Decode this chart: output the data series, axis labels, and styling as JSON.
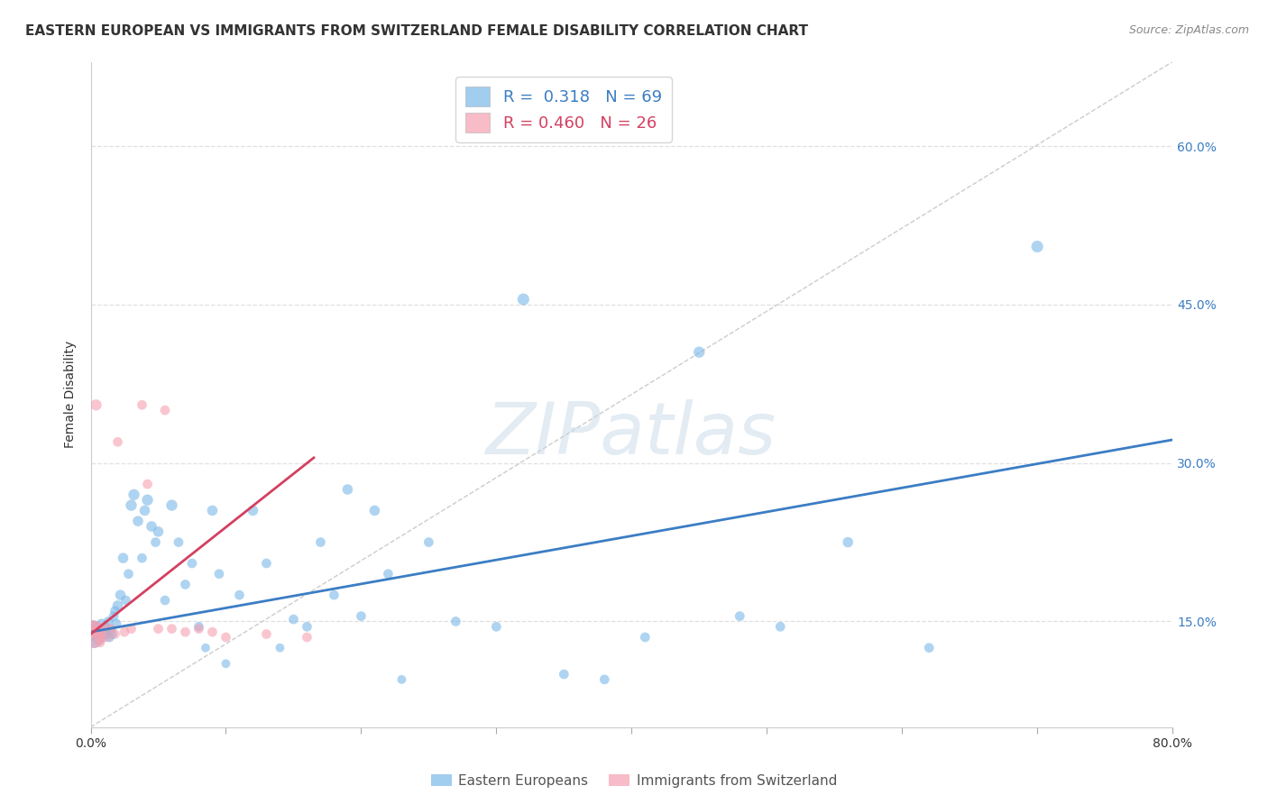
{
  "title": "EASTERN EUROPEAN VS IMMIGRANTS FROM SWITZERLAND FEMALE DISABILITY CORRELATION CHART",
  "source": "Source: ZipAtlas.com",
  "ylabel": "Female Disability",
  "xlim": [
    0.0,
    0.8
  ],
  "ylim": [
    0.05,
    0.68
  ],
  "yticks": [
    0.15,
    0.3,
    0.45,
    0.6
  ],
  "ytick_labels": [
    "15.0%",
    "30.0%",
    "45.0%",
    "60.0%"
  ],
  "xticks": [
    0.0,
    0.1,
    0.2,
    0.3,
    0.4,
    0.5,
    0.6,
    0.7,
    0.8
  ],
  "xtick_labels": [
    "0.0%",
    "",
    "",
    "",
    "",
    "",
    "",
    "",
    "80.0%"
  ],
  "blue_R": "0.318",
  "blue_N": "69",
  "pink_R": "0.460",
  "pink_N": "26",
  "blue_color": "#7ab8e8",
  "pink_color": "#f5a0b0",
  "blue_line_color": "#3b7dc4",
  "pink_line_color": "#d44060",
  "blue_scatter_x": [
    0.001,
    0.002,
    0.003,
    0.004,
    0.005,
    0.006,
    0.007,
    0.008,
    0.009,
    0.01,
    0.011,
    0.012,
    0.013,
    0.014,
    0.015,
    0.016,
    0.017,
    0.018,
    0.019,
    0.02,
    0.022,
    0.024,
    0.026,
    0.028,
    0.03,
    0.032,
    0.035,
    0.038,
    0.04,
    0.042,
    0.045,
    0.048,
    0.05,
    0.055,
    0.06,
    0.065,
    0.07,
    0.075,
    0.08,
    0.085,
    0.09,
    0.095,
    0.1,
    0.11,
    0.12,
    0.13,
    0.14,
    0.15,
    0.16,
    0.17,
    0.18,
    0.19,
    0.2,
    0.21,
    0.22,
    0.23,
    0.25,
    0.27,
    0.3,
    0.32,
    0.35,
    0.38,
    0.41,
    0.45,
    0.48,
    0.51,
    0.56,
    0.62,
    0.7
  ],
  "blue_scatter_y": [
    0.14,
    0.145,
    0.13,
    0.145,
    0.138,
    0.132,
    0.142,
    0.148,
    0.135,
    0.14,
    0.145,
    0.138,
    0.15,
    0.135,
    0.142,
    0.138,
    0.155,
    0.16,
    0.148,
    0.165,
    0.175,
    0.21,
    0.17,
    0.195,
    0.26,
    0.27,
    0.245,
    0.21,
    0.255,
    0.265,
    0.24,
    0.225,
    0.235,
    0.17,
    0.26,
    0.225,
    0.185,
    0.205,
    0.145,
    0.125,
    0.255,
    0.195,
    0.11,
    0.175,
    0.255,
    0.205,
    0.125,
    0.152,
    0.145,
    0.225,
    0.175,
    0.275,
    0.155,
    0.255,
    0.195,
    0.095,
    0.225,
    0.15,
    0.145,
    0.455,
    0.1,
    0.095,
    0.135,
    0.405,
    0.155,
    0.145,
    0.225,
    0.125,
    0.505
  ],
  "blue_scatter_size": [
    200,
    100,
    80,
    70,
    70,
    70,
    60,
    60,
    60,
    70,
    60,
    60,
    60,
    60,
    60,
    60,
    60,
    60,
    60,
    70,
    70,
    70,
    60,
    60,
    80,
    80,
    70,
    60,
    70,
    80,
    70,
    60,
    70,
    60,
    80,
    60,
    60,
    60,
    60,
    50,
    70,
    60,
    50,
    60,
    70,
    60,
    50,
    60,
    60,
    60,
    60,
    70,
    60,
    70,
    60,
    50,
    60,
    60,
    60,
    90,
    60,
    60,
    60,
    80,
    60,
    60,
    70,
    60,
    90
  ],
  "pink_scatter_x": [
    0.001,
    0.002,
    0.003,
    0.004,
    0.005,
    0.006,
    0.007,
    0.008,
    0.01,
    0.012,
    0.015,
    0.018,
    0.02,
    0.025,
    0.03,
    0.038,
    0.042,
    0.05,
    0.055,
    0.06,
    0.07,
    0.08,
    0.09,
    0.1,
    0.13,
    0.16
  ],
  "pink_scatter_y": [
    0.138,
    0.14,
    0.145,
    0.355,
    0.14,
    0.135,
    0.13,
    0.14,
    0.145,
    0.135,
    0.143,
    0.138,
    0.32,
    0.14,
    0.143,
    0.355,
    0.28,
    0.143,
    0.35,
    0.143,
    0.14,
    0.143,
    0.14,
    0.135,
    0.138,
    0.135
  ],
  "pink_scatter_size": [
    500,
    100,
    80,
    80,
    70,
    70,
    60,
    60,
    60,
    60,
    60,
    60,
    60,
    60,
    60,
    60,
    60,
    60,
    60,
    60,
    60,
    60,
    60,
    60,
    60,
    60
  ],
  "blue_trend_x": [
    0.0,
    0.8
  ],
  "blue_trend_y": [
    0.14,
    0.322
  ],
  "pink_trend_x": [
    0.0,
    0.165
  ],
  "pink_trend_y": [
    0.138,
    0.305
  ],
  "ref_line_x": [
    0.0,
    0.8
  ],
  "ref_line_y": [
    0.05,
    0.68
  ],
  "background_color": "#ffffff",
  "grid_color": "#e0e0e0",
  "title_fontsize": 11,
  "axis_label_fontsize": 10,
  "tick_fontsize": 10,
  "legend_fontsize": 13
}
